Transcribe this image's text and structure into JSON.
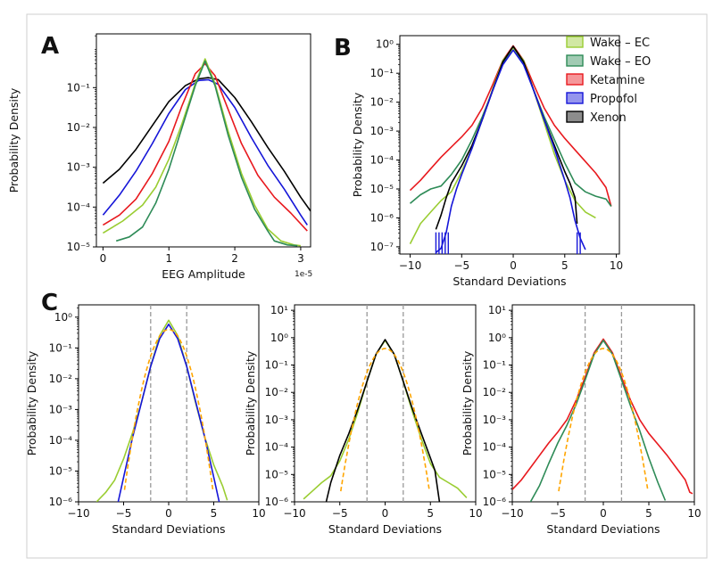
{
  "figure": {
    "panel_letters": [
      "A",
      "B",
      "C"
    ],
    "scale_note": "1e-5"
  },
  "colors": {
    "wake_ec": "#9acd32",
    "wake_eo": "#2e8b57",
    "ketamine": "#e8191e",
    "propofol": "#1515d8",
    "xenon": "#000000",
    "gaussian": "#ffa500",
    "sigma_line": "#999999"
  },
  "legend": {
    "items": [
      {
        "label": "Wake – EC",
        "key": "wake_ec"
      },
      {
        "label": "Wake – EO",
        "key": "wake_eo"
      },
      {
        "label": "Ketamine",
        "key": "ketamine"
      },
      {
        "label": "Propofol",
        "key": "propofol"
      },
      {
        "label": "Xenon",
        "key": "xenon"
      }
    ]
  },
  "chart_data": [
    {
      "id": "A",
      "type": "line",
      "title": "",
      "xlabel": "EEG Amplitude",
      "ylabel": "Probability Density",
      "x_scale_note": "1e-5",
      "xlim": [
        -0.1,
        3.15
      ],
      "ylim_exp": [
        -5,
        0.35
      ],
      "xticks": [
        0,
        1,
        2,
        3
      ],
      "xtick_labels": [
        "0",
        "1",
        "2",
        "3"
      ],
      "ytick_exps": [
        -5,
        -4,
        -3,
        -2,
        -1
      ],
      "ytick_labels": [
        "10⁻⁵",
        "10⁻⁴",
        "10⁻³",
        "10⁻²",
        "10⁻¹"
      ],
      "series": [
        {
          "name": "Xenon",
          "key": "xenon",
          "x": [
            0,
            0.25,
            0.5,
            0.75,
            1.0,
            1.25,
            1.45,
            1.6,
            1.75,
            2.0,
            2.25,
            2.5,
            2.75,
            3.0,
            3.15
          ],
          "log10y": [
            -3.4,
            -3.05,
            -2.55,
            -1.95,
            -1.35,
            -0.95,
            -0.78,
            -0.75,
            -0.8,
            -1.25,
            -1.85,
            -2.5,
            -3.1,
            -3.75,
            -4.1
          ]
        },
        {
          "name": "Propofol",
          "key": "propofol",
          "x": [
            0,
            0.25,
            0.5,
            0.75,
            1.0,
            1.25,
            1.45,
            1.6,
            1.75,
            2.0,
            2.25,
            2.5,
            2.75,
            3.0,
            3.1
          ],
          "log10y": [
            -4.2,
            -3.7,
            -3.1,
            -2.4,
            -1.65,
            -1.05,
            -0.82,
            -0.8,
            -0.92,
            -1.5,
            -2.25,
            -2.95,
            -3.55,
            -4.2,
            -4.45
          ]
        },
        {
          "name": "Ketamine",
          "key": "ketamine",
          "x": [
            0,
            0.25,
            0.5,
            0.75,
            1.0,
            1.2,
            1.4,
            1.55,
            1.7,
            1.9,
            2.1,
            2.35,
            2.6,
            2.85,
            3.1
          ],
          "log10y": [
            -4.45,
            -4.2,
            -3.8,
            -3.15,
            -2.35,
            -1.45,
            -0.65,
            -0.4,
            -0.7,
            -1.55,
            -2.4,
            -3.2,
            -3.75,
            -4.15,
            -4.6
          ]
        },
        {
          "name": "Wake – EC",
          "key": "wake_ec",
          "x": [
            0,
            0.3,
            0.6,
            0.8,
            1.0,
            1.2,
            1.4,
            1.55,
            1.7,
            1.9,
            2.1,
            2.3,
            2.5,
            2.7,
            2.9,
            3.0
          ],
          "log10y": [
            -4.65,
            -4.35,
            -3.95,
            -3.5,
            -2.8,
            -1.9,
            -0.9,
            -0.28,
            -0.9,
            -2.1,
            -3.15,
            -3.95,
            -4.55,
            -4.85,
            -4.95,
            -4.97
          ]
        },
        {
          "name": "Wake – EO",
          "key": "wake_eo",
          "x": [
            0.2,
            0.4,
            0.6,
            0.8,
            1.0,
            1.2,
            1.4,
            1.55,
            1.7,
            1.9,
            2.1,
            2.3,
            2.5,
            2.6,
            2.8,
            2.95
          ],
          "log10y": [
            -4.85,
            -4.75,
            -4.5,
            -3.9,
            -3.05,
            -2.0,
            -0.95,
            -0.33,
            -0.95,
            -2.2,
            -3.25,
            -4.05,
            -4.6,
            -4.85,
            -4.95,
            -4.97
          ]
        }
      ]
    },
    {
      "id": "B",
      "type": "line",
      "title": "",
      "xlabel": "Standard Deviations",
      "ylabel": "Probability Density",
      "xlim": [
        -11,
        10.3
      ],
      "ylim_exp": [
        -7.25,
        0.3
      ],
      "xticks": [
        -10,
        -5,
        0,
        5,
        10
      ],
      "xtick_labels": [
        "−10",
        "−5",
        "0",
        "5",
        "10"
      ],
      "ytick_exps": [
        -7,
        -6,
        -5,
        -4,
        -3,
        -2,
        -1,
        0
      ],
      "ytick_labels": [
        "10⁻⁷",
        "10⁻⁶",
        "10⁻⁵",
        "10⁻⁴",
        "10⁻³",
        "10⁻²",
        "10⁻¹",
        "10⁰"
      ],
      "series": [
        {
          "name": "Ketamine",
          "key": "ketamine",
          "x": [
            -10,
            -9,
            -8,
            -7,
            -6,
            -5,
            -4,
            -3,
            -2,
            -1,
            0,
            1,
            2,
            3,
            4,
            5,
            6,
            7,
            8,
            9,
            9.5
          ],
          "log10y": [
            -5.05,
            -4.7,
            -4.3,
            -3.9,
            -3.55,
            -3.2,
            -2.8,
            -2.2,
            -1.4,
            -0.55,
            -0.05,
            -0.55,
            -1.4,
            -2.2,
            -2.8,
            -3.25,
            -3.65,
            -4.05,
            -4.45,
            -4.95,
            -5.6
          ]
        },
        {
          "name": "Wake – EO",
          "key": "wake_eo",
          "x": [
            -10,
            -9,
            -8,
            -7,
            -6,
            -5,
            -4,
            -3,
            -2,
            -1,
            0,
            1,
            2,
            3,
            4,
            5,
            6,
            7,
            8,
            9,
            9.5
          ],
          "log10y": [
            -5.5,
            -5.2,
            -5.0,
            -4.9,
            -4.5,
            -4.0,
            -3.3,
            -2.5,
            -1.6,
            -0.65,
            -0.1,
            -0.65,
            -1.6,
            -2.5,
            -3.3,
            -4.1,
            -4.8,
            -5.1,
            -5.25,
            -5.35,
            -5.6
          ]
        },
        {
          "name": "Wake – EC",
          "key": "wake_ec",
          "x": [
            -10,
            -9,
            -8,
            -7,
            -6,
            -5,
            -4,
            -3,
            -2,
            -1,
            0,
            1,
            2,
            3,
            4,
            5,
            6,
            7,
            7.5,
            8
          ],
          "log10y": [
            -6.9,
            -6.2,
            -5.8,
            -5.4,
            -5.1,
            -4.4,
            -3.6,
            -2.6,
            -1.55,
            -0.55,
            -0.12,
            -0.55,
            -1.6,
            -2.7,
            -3.8,
            -4.7,
            -5.4,
            -5.8,
            -5.9,
            -6.0
          ]
        },
        {
          "name": "Xenon",
          "key": "xenon",
          "x": [
            -7.5,
            -7,
            -6.5,
            -6,
            -5,
            -4,
            -3,
            -2,
            -1,
            0,
            1,
            2,
            3,
            4,
            5,
            5.5,
            6,
            6.2
          ],
          "log10y": [
            -6.4,
            -5.9,
            -5.3,
            -4.8,
            -4.2,
            -3.5,
            -2.6,
            -1.6,
            -0.6,
            -0.07,
            -0.6,
            -1.6,
            -2.6,
            -3.5,
            -4.4,
            -4.8,
            -5.3,
            -6.2
          ]
        },
        {
          "name": "Propofol",
          "key": "propofol",
          "x": [
            -7.5,
            -7.0,
            -6.5,
            -6.0,
            -5.5,
            -5.0,
            -4,
            -3,
            -2,
            -1,
            0,
            1,
            2,
            3,
            4,
            5,
            5.5,
            6,
            6.5,
            7
          ],
          "log10y": [
            -7.2,
            -7.05,
            -6.5,
            -5.6,
            -5.0,
            -4.5,
            -3.6,
            -2.6,
            -1.6,
            -0.7,
            -0.2,
            -0.7,
            -1.6,
            -2.6,
            -3.6,
            -4.7,
            -5.3,
            -6.1,
            -6.7,
            -7.1
          ]
        }
      ]
    },
    {
      "id": "C1",
      "type": "line",
      "title": "",
      "xlabel": "Standard Deviations",
      "ylabel": "Probability Density",
      "xlim": [
        -10,
        10
      ],
      "ylim_exp": [
        -6,
        0.4
      ],
      "xticks": [
        -10,
        -5,
        0,
        5,
        10
      ],
      "xtick_labels": [
        "−10",
        "−5",
        "0",
        "5",
        "10"
      ],
      "ytick_exps": [
        -6,
        -5,
        -4,
        -3,
        -2,
        -1,
        0
      ],
      "ytick_labels": [
        "10⁻⁶",
        "10⁻⁵",
        "10⁻⁴",
        "10⁻³",
        "10⁻²",
        "10⁻¹",
        "10⁰"
      ],
      "vlines": [
        -2,
        2
      ],
      "gaussian": {
        "x_range": [
          -4.9,
          4.9
        ],
        "color_key": "gaussian"
      },
      "series": [
        {
          "name": "Wake – EC",
          "key": "wake_ec",
          "x": [
            -8,
            -7,
            -6,
            -5,
            -4,
            -3,
            -2,
            -1,
            0,
            1,
            2,
            3,
            4,
            5,
            6,
            6.5
          ],
          "log10y": [
            -6.0,
            -5.7,
            -5.3,
            -4.6,
            -3.75,
            -2.75,
            -1.6,
            -0.6,
            -0.1,
            -0.6,
            -1.6,
            -2.8,
            -3.9,
            -4.8,
            -5.5,
            -5.95
          ]
        },
        {
          "name": "Propofol",
          "key": "propofol",
          "x": [
            -5.6,
            -5,
            -4,
            -3,
            -2,
            -1,
            0,
            1,
            2,
            3,
            4,
            5,
            5.6
          ],
          "log10y": [
            -6.0,
            -5.2,
            -3.9,
            -2.75,
            -1.6,
            -0.7,
            -0.23,
            -0.7,
            -1.6,
            -2.75,
            -3.9,
            -5.2,
            -6.0
          ]
        }
      ]
    },
    {
      "id": "C2",
      "type": "line",
      "title": "",
      "xlabel": "Standard Deviations",
      "ylabel": "Probability Density",
      "xlim": [
        -10,
        10
      ],
      "ylim_exp": [
        -6,
        1.2
      ],
      "xticks": [
        -10,
        -5,
        0,
        5,
        10
      ],
      "xtick_labels": [
        "−10",
        "−5",
        "0",
        "5",
        "10"
      ],
      "ytick_exps": [
        -6,
        -5,
        -4,
        -3,
        -2,
        -1,
        0,
        1
      ],
      "ytick_labels": [
        "10⁻⁶",
        "10⁻⁵",
        "10⁻⁴",
        "10⁻³",
        "10⁻²",
        "10⁻¹",
        "10⁰",
        "10¹"
      ],
      "vlines": [
        -2,
        2
      ],
      "gaussian": {
        "x_range": [
          -4.9,
          4.9
        ],
        "color_key": "gaussian"
      },
      "series": [
        {
          "name": "Wake – EC",
          "key": "wake_ec",
          "x": [
            -9,
            -8,
            -7,
            -6,
            -5,
            -4,
            -3,
            -2,
            -1,
            0,
            1,
            2,
            3,
            4,
            5,
            6,
            7,
            8,
            9
          ],
          "log10y": [
            -5.9,
            -5.6,
            -5.3,
            -5.05,
            -4.5,
            -3.7,
            -2.7,
            -1.6,
            -0.6,
            -0.1,
            -0.6,
            -1.6,
            -2.7,
            -3.7,
            -4.6,
            -5.1,
            -5.3,
            -5.5,
            -5.85
          ]
        },
        {
          "name": "Xenon",
          "key": "xenon",
          "x": [
            -6.5,
            -6,
            -5,
            -4,
            -3,
            -2,
            -1,
            0,
            1,
            2,
            3,
            4,
            5,
            5.5,
            6
          ],
          "log10y": [
            -6.0,
            -5.3,
            -4.3,
            -3.5,
            -2.6,
            -1.6,
            -0.6,
            -0.07,
            -0.6,
            -1.6,
            -2.6,
            -3.5,
            -4.4,
            -4.85,
            -6.0
          ]
        }
      ]
    },
    {
      "id": "C3",
      "type": "line",
      "title": "",
      "xlabel": "Standard Deviations",
      "ylabel": "Probability Density",
      "xlim": [
        -10,
        10
      ],
      "ylim_exp": [
        -6,
        1.2
      ],
      "xticks": [
        -10,
        -5,
        0,
        5,
        10
      ],
      "xtick_labels": [
        "−10",
        "−5",
        "0",
        "5",
        "10"
      ],
      "ytick_exps": [
        -6,
        -5,
        -4,
        -3,
        -2,
        -1,
        0,
        1
      ],
      "ytick_labels": [
        "10⁻⁶",
        "10⁻⁵",
        "10⁻⁴",
        "10⁻³",
        "10⁻²",
        "10⁻¹",
        "10⁰",
        "10¹"
      ],
      "vlines": [
        -2,
        2
      ],
      "gaussian": {
        "x_range": [
          -4.9,
          4.9
        ],
        "color_key": "gaussian"
      },
      "series": [
        {
          "name": "Ketamine",
          "key": "ketamine",
          "x": [
            -10,
            -9,
            -8,
            -7,
            -6,
            -5,
            -4,
            -3,
            -2,
            -1,
            0,
            1,
            2,
            3,
            4,
            5,
            6,
            7,
            8,
            9,
            9.5,
            9.8
          ],
          "log10y": [
            -5.55,
            -5.2,
            -4.75,
            -4.3,
            -3.85,
            -3.45,
            -3.0,
            -2.3,
            -1.45,
            -0.55,
            -0.05,
            -0.55,
            -1.45,
            -2.3,
            -3.0,
            -3.5,
            -3.9,
            -4.3,
            -4.75,
            -5.2,
            -5.65,
            -5.7
          ]
        },
        {
          "name": "Wake – EO",
          "key": "wake_eo",
          "x": [
            -8,
            -7,
            -6,
            -5,
            -4,
            -3,
            -2,
            -1,
            0,
            1,
            2,
            3,
            4,
            5,
            6,
            6.8
          ],
          "log10y": [
            -6.0,
            -5.4,
            -4.6,
            -3.85,
            -3.2,
            -2.45,
            -1.55,
            -0.6,
            -0.1,
            -0.6,
            -1.55,
            -2.5,
            -3.4,
            -4.4,
            -5.3,
            -5.95
          ]
        }
      ]
    }
  ]
}
